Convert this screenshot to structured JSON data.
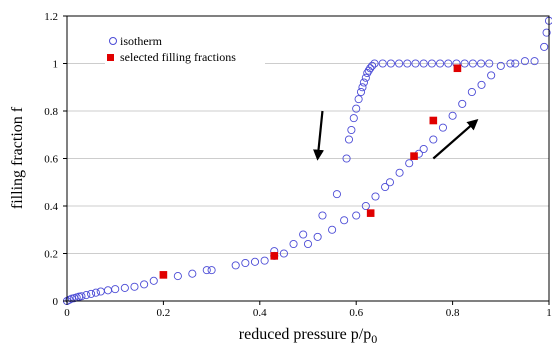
{
  "chart_data": {
    "type": "scatter",
    "title": "",
    "xlabel": "reduced pressure p/p",
    "xlabel_subscript": "0",
    "ylabel": "filling fraction f",
    "xlim": [
      0,
      1
    ],
    "ylim": [
      0,
      1.2
    ],
    "x_ticks": [
      "0",
      "0.2",
      "0.4",
      "0.6",
      "0.8",
      "1"
    ],
    "y_ticks": [
      "0",
      "0.2",
      "0.4",
      "0.6",
      "0.8",
      "1",
      "1.2"
    ],
    "grid": "horizontal",
    "legend_position": "top-left",
    "series": [
      {
        "name": "isotherm",
        "marker": "open-circle",
        "color": "#4b4bd6",
        "points": [
          [
            0.0,
            0.0
          ],
          [
            0.005,
            0.005
          ],
          [
            0.01,
            0.01
          ],
          [
            0.015,
            0.012
          ],
          [
            0.02,
            0.015
          ],
          [
            0.025,
            0.018
          ],
          [
            0.03,
            0.02
          ],
          [
            0.04,
            0.025
          ],
          [
            0.05,
            0.03
          ],
          [
            0.06,
            0.035
          ],
          [
            0.07,
            0.04
          ],
          [
            0.085,
            0.045
          ],
          [
            0.1,
            0.05
          ],
          [
            0.12,
            0.055
          ],
          [
            0.14,
            0.06
          ],
          [
            0.16,
            0.07
          ],
          [
            0.18,
            0.085
          ],
          [
            0.23,
            0.105
          ],
          [
            0.26,
            0.115
          ],
          [
            0.29,
            0.13
          ],
          [
            0.3,
            0.13
          ],
          [
            0.35,
            0.15
          ],
          [
            0.37,
            0.16
          ],
          [
            0.39,
            0.165
          ],
          [
            0.41,
            0.17
          ],
          [
            0.43,
            0.19
          ],
          [
            0.43,
            0.21
          ],
          [
            0.45,
            0.2
          ],
          [
            0.47,
            0.24
          ],
          [
            0.49,
            0.28
          ],
          [
            0.5,
            0.24
          ],
          [
            0.52,
            0.27
          ],
          [
            0.53,
            0.36
          ],
          [
            0.55,
            0.3
          ],
          [
            0.56,
            0.45
          ],
          [
            0.575,
            0.34
          ],
          [
            0.58,
            0.6
          ],
          [
            0.585,
            0.68
          ],
          [
            0.59,
            0.72
          ],
          [
            0.595,
            0.77
          ],
          [
            0.6,
            0.81
          ],
          [
            0.605,
            0.85
          ],
          [
            0.61,
            0.88
          ],
          [
            0.613,
            0.9
          ],
          [
            0.616,
            0.92
          ],
          [
            0.62,
            0.94
          ],
          [
            0.623,
            0.96
          ],
          [
            0.626,
            0.97
          ],
          [
            0.629,
            0.98
          ],
          [
            0.633,
            0.99
          ],
          [
            0.638,
            1.0
          ],
          [
            0.655,
            1.0
          ],
          [
            0.672,
            1.0
          ],
          [
            0.689,
            1.0
          ],
          [
            0.706,
            1.0
          ],
          [
            0.723,
            1.0
          ],
          [
            0.74,
            1.0
          ],
          [
            0.757,
            1.0
          ],
          [
            0.774,
            1.0
          ],
          [
            0.791,
            1.0
          ],
          [
            0.808,
            1.0
          ],
          [
            0.825,
            1.0
          ],
          [
            0.842,
            1.0
          ],
          [
            0.859,
            1.0
          ],
          [
            0.876,
            1.0
          ],
          [
            0.6,
            0.36
          ],
          [
            0.62,
            0.4
          ],
          [
            0.64,
            0.44
          ],
          [
            0.66,
            0.48
          ],
          [
            0.67,
            0.5
          ],
          [
            0.69,
            0.54
          ],
          [
            0.71,
            0.58
          ],
          [
            0.73,
            0.62
          ],
          [
            0.74,
            0.64
          ],
          [
            0.76,
            0.68
          ],
          [
            0.78,
            0.73
          ],
          [
            0.8,
            0.78
          ],
          [
            0.82,
            0.83
          ],
          [
            0.84,
            0.88
          ],
          [
            0.86,
            0.91
          ],
          [
            0.88,
            0.95
          ],
          [
            0.9,
            0.99
          ],
          [
            0.92,
            1.0
          ],
          [
            0.93,
            1.0
          ],
          [
            0.95,
            1.01
          ],
          [
            0.97,
            1.01
          ],
          [
            0.99,
            1.07
          ],
          [
            0.995,
            1.13
          ],
          [
            1.0,
            1.18
          ]
        ]
      },
      {
        "name": "selected filling fractions",
        "marker": "filled-square",
        "color": "#e00000",
        "points": [
          [
            0.2,
            0.11
          ],
          [
            0.43,
            0.19
          ],
          [
            0.63,
            0.37
          ],
          [
            0.72,
            0.61
          ],
          [
            0.76,
            0.76
          ],
          [
            0.81,
            0.98
          ]
        ]
      }
    ],
    "annotations": [
      {
        "kind": "arrow",
        "direction": "down",
        "from": [
          0.53,
          0.8
        ],
        "to": [
          0.52,
          0.6
        ]
      },
      {
        "kind": "arrow",
        "direction": "up",
        "from": [
          0.76,
          0.6
        ],
        "to": [
          0.85,
          0.76
        ]
      }
    ]
  }
}
